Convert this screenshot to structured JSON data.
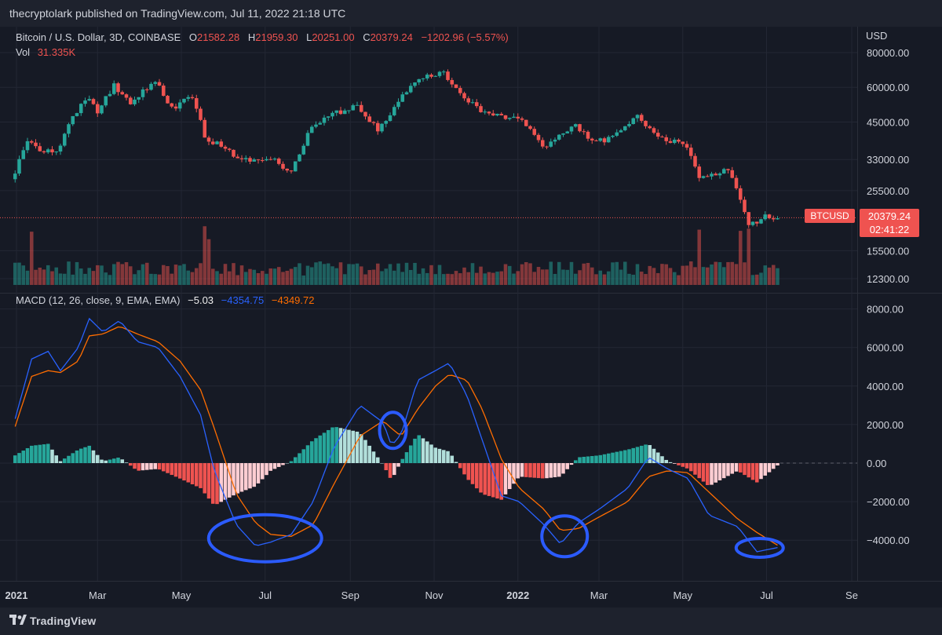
{
  "header": {
    "published_by": "thecryptolark published on TradingView.com, Jul 11, 2022 21:18 UTC"
  },
  "footer": {
    "brand": "TradingView"
  },
  "colors": {
    "up": "#26a69a",
    "down": "#ef5350",
    "macd": "#2962ff",
    "signal": "#ff6d00",
    "annotation": "#2b5bff"
  },
  "chart_data": {
    "type": "candlestick",
    "price_pane": {
      "symbol_line": {
        "name": "Bitcoin / U.S. Dollar, 3D, COINBASE",
        "o_label": "O",
        "o": "21582.28",
        "h_label": "H",
        "h": "21959.30",
        "l_label": "L",
        "l": "20251.00",
        "c_label": "C",
        "c": "20379.24",
        "change": "−1202.96 (−5.57%)"
      },
      "vol_line": {
        "label": "Vol",
        "value": "31.335K"
      },
      "axis_unit": "USD",
      "scale": "log",
      "price_ticks": [
        "80000.00",
        "60000.00",
        "45000.00",
        "33000.00",
        "25500.00",
        "15500.00",
        "12300.00"
      ],
      "last_price_label": "BTCUSD",
      "last_price": "20379.24",
      "countdown": "02:41:22",
      "close_anchors": [
        [
          "2020-12-31",
          28900
        ],
        [
          "2021-01-08",
          39000
        ],
        [
          "2021-01-20",
          34500
        ],
        [
          "2021-02-01",
          36500
        ],
        [
          "2021-02-12",
          47500
        ],
        [
          "2021-02-21",
          56000
        ],
        [
          "2021-03-01",
          49000
        ],
        [
          "2021-03-13",
          61000
        ],
        [
          "2021-03-25",
          53000
        ],
        [
          "2021-04-13",
          63500
        ],
        [
          "2021-04-25",
          49500
        ],
        [
          "2021-05-08",
          58000
        ],
        [
          "2021-05-13",
          49500
        ],
        [
          "2021-05-19",
          37000
        ],
        [
          "2021-05-25",
          38500
        ],
        [
          "2021-06-08",
          34000
        ],
        [
          "2021-06-21",
          32000
        ],
        [
          "2021-07-01",
          34000
        ],
        [
          "2021-07-20",
          30000
        ],
        [
          "2021-08-01",
          41000
        ],
        [
          "2021-08-15",
          47000
        ],
        [
          "2021-09-06",
          51500
        ],
        [
          "2021-09-21",
          42000
        ],
        [
          "2021-10-01",
          48000
        ],
        [
          "2021-10-10",
          57000
        ],
        [
          "2021-10-20",
          64000
        ],
        [
          "2021-11-08",
          67500
        ],
        [
          "2021-11-20",
          58000
        ],
        [
          "2021-12-04",
          49500
        ],
        [
          "2021-12-20",
          47000
        ],
        [
          "2022-01-01",
          47500
        ],
        [
          "2022-01-21",
          36500
        ],
        [
          "2022-02-10",
          44000
        ],
        [
          "2022-02-24",
          38500
        ],
        [
          "2022-03-10",
          39000
        ],
        [
          "2022-03-28",
          47500
        ],
        [
          "2022-04-12",
          40000
        ],
        [
          "2022-04-26",
          38000
        ],
        [
          "2022-05-06",
          35500
        ],
        [
          "2022-05-12",
          29000
        ],
        [
          "2022-06-05",
          30000
        ],
        [
          "2022-06-13",
          22500
        ],
        [
          "2022-06-18",
          19000
        ],
        [
          "2022-06-28",
          20500
        ],
        [
          "2022-07-11",
          20379
        ]
      ]
    },
    "volume": {
      "label": "Vol",
      "spike_dates": [
        "2021-01-11",
        "2021-05-19",
        "2021-05-22",
        "2022-05-12",
        "2022-06-13",
        "2022-06-18"
      ]
    },
    "macd_pane": {
      "label": "MACD (12, 26, close, 9, EMA, EMA)",
      "histogram_value": "−5.03",
      "macd_value": "−4354.75",
      "signal_value": "−4349.72",
      "ticks": [
        "8000.00",
        "6000.00",
        "4000.00",
        "2000.00",
        "0.00",
        "−2000.00",
        "−4000.00"
      ],
      "macd_anchors": [
        [
          "2020-12-31",
          2300
        ],
        [
          "2021-01-12",
          5400
        ],
        [
          "2021-01-24",
          5800
        ],
        [
          "2021-02-02",
          4800
        ],
        [
          "2021-02-15",
          6000
        ],
        [
          "2021-02-23",
          7500
        ],
        [
          "2021-03-05",
          6800
        ],
        [
          "2021-03-17",
          7400
        ],
        [
          "2021-03-30",
          6300
        ],
        [
          "2021-04-14",
          6000
        ],
        [
          "2021-04-30",
          4500
        ],
        [
          "2021-05-15",
          2500
        ],
        [
          "2021-05-25",
          -400
        ],
        [
          "2021-06-10",
          -3200
        ],
        [
          "2021-06-24",
          -4300
        ],
        [
          "2021-07-05",
          -4100
        ],
        [
          "2021-07-20",
          -3700
        ],
        [
          "2021-08-05",
          -2000
        ],
        [
          "2021-08-20",
          800
        ],
        [
          "2021-09-08",
          3000
        ],
        [
          "2021-09-25",
          2100
        ],
        [
          "2021-10-01",
          900
        ],
        [
          "2021-10-08",
          1500
        ],
        [
          "2021-10-20",
          4300
        ],
        [
          "2021-11-02",
          4800
        ],
        [
          "2021-11-12",
          5200
        ],
        [
          "2021-11-25",
          3500
        ],
        [
          "2021-12-06",
          1200
        ],
        [
          "2021-12-20",
          -1700
        ],
        [
          "2022-01-02",
          -2000
        ],
        [
          "2022-01-20",
          -3200
        ],
        [
          "2022-02-01",
          -4200
        ],
        [
          "2022-02-14",
          -3100
        ],
        [
          "2022-03-01",
          -2400
        ],
        [
          "2022-03-22",
          -1300
        ],
        [
          "2022-04-06",
          300
        ],
        [
          "2022-04-20",
          -300
        ],
        [
          "2022-05-05",
          -800
        ],
        [
          "2022-05-20",
          -2700
        ],
        [
          "2022-06-10",
          -3300
        ],
        [
          "2022-06-24",
          -4600
        ],
        [
          "2022-07-11",
          -4355
        ]
      ],
      "signal_anchors": [
        [
          "2020-12-31",
          1900
        ],
        [
          "2021-01-12",
          4500
        ],
        [
          "2021-01-24",
          4800
        ],
        [
          "2021-02-02",
          4700
        ],
        [
          "2021-02-15",
          5300
        ],
        [
          "2021-02-23",
          6600
        ],
        [
          "2021-03-05",
          6700
        ],
        [
          "2021-03-17",
          7100
        ],
        [
          "2021-03-30",
          6700
        ],
        [
          "2021-04-14",
          6300
        ],
        [
          "2021-04-30",
          5300
        ],
        [
          "2021-05-15",
          3800
        ],
        [
          "2021-05-25",
          1800
        ],
        [
          "2021-06-10",
          -1600
        ],
        [
          "2021-06-24",
          -3100
        ],
        [
          "2021-07-05",
          -3700
        ],
        [
          "2021-07-20",
          -3800
        ],
        [
          "2021-08-05",
          -3200
        ],
        [
          "2021-08-20",
          -1100
        ],
        [
          "2021-09-08",
          1400
        ],
        [
          "2021-09-25",
          2200
        ],
        [
          "2021-10-01",
          1800
        ],
        [
          "2021-10-08",
          1400
        ],
        [
          "2021-10-20",
          2800
        ],
        [
          "2021-11-02",
          4000
        ],
        [
          "2021-11-12",
          4600
        ],
        [
          "2021-11-25",
          4300
        ],
        [
          "2021-12-06",
          2800
        ],
        [
          "2021-12-20",
          200
        ],
        [
          "2022-01-02",
          -1300
        ],
        [
          "2022-01-20",
          -2400
        ],
        [
          "2022-02-01",
          -3500
        ],
        [
          "2022-02-14",
          -3400
        ],
        [
          "2022-03-01",
          -2800
        ],
        [
          "2022-03-22",
          -2000
        ],
        [
          "2022-04-06",
          -700
        ],
        [
          "2022-04-20",
          -400
        ],
        [
          "2022-05-05",
          -500
        ],
        [
          "2022-05-20",
          -1500
        ],
        [
          "2022-06-10",
          -2900
        ],
        [
          "2022-06-24",
          -3600
        ],
        [
          "2022-07-11",
          -4350
        ]
      ],
      "annotations": [
        {
          "shape": "ellipse",
          "cx_date": "2021-07-01",
          "cy": -3900
        },
        {
          "shape": "ellipse",
          "cx_date": "2021-10-02",
          "cy": 1700
        },
        {
          "shape": "ellipse",
          "cx_date": "2022-02-04",
          "cy": -3800
        },
        {
          "shape": "ellipse",
          "cx_date": "2022-06-26",
          "cy": -4400
        }
      ]
    },
    "x_axis": {
      "range": [
        "2020-12-20",
        "2022-09-05"
      ],
      "ticks": [
        {
          "date": "2021-01-01",
          "label": "2021",
          "bold": true
        },
        {
          "date": "2021-03-01",
          "label": "Mar"
        },
        {
          "date": "2021-05-01",
          "label": "May"
        },
        {
          "date": "2021-07-01",
          "label": "Jul"
        },
        {
          "date": "2021-09-01",
          "label": "Sep"
        },
        {
          "date": "2021-11-01",
          "label": "Nov"
        },
        {
          "date": "2022-01-01",
          "label": "2022",
          "bold": true
        },
        {
          "date": "2022-03-01",
          "label": "Mar"
        },
        {
          "date": "2022-05-01",
          "label": "May"
        },
        {
          "date": "2022-07-01",
          "label": "Jul"
        },
        {
          "date": "2022-09-01",
          "label": "Se"
        }
      ]
    }
  }
}
